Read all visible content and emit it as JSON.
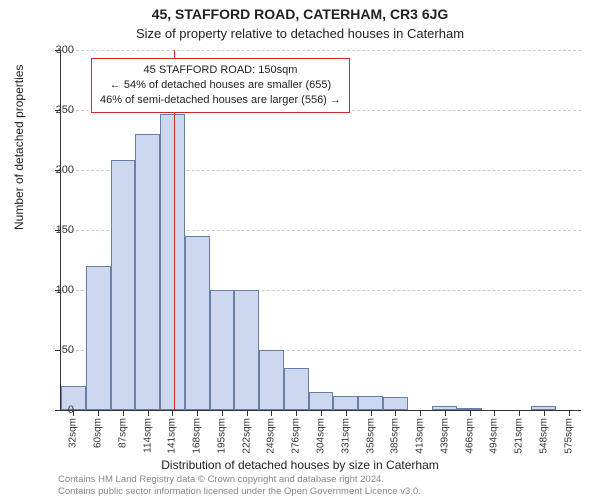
{
  "title": "45, STAFFORD ROAD, CATERHAM, CR3 6JG",
  "subtitle": "Size of property relative to detached houses in Caterham",
  "chart": {
    "type": "histogram",
    "background_color": "#ffffff",
    "grid_color": "#cccccc",
    "axis_color": "#333333",
    "bar_fill": "#cdd8ef",
    "bar_border": "#6a7fa8",
    "marker_color": "#d62728",
    "annotation_border": "#d62728",
    "y": {
      "label": "Number of detached properties",
      "min": 0,
      "max": 300,
      "tick_step": 50,
      "ticks": [
        0,
        50,
        100,
        150,
        200,
        250,
        300
      ],
      "label_fontsize": 12,
      "tick_fontsize": 11
    },
    "x": {
      "label": "Distribution of detached houses by size in Caterham",
      "unit": "sqm",
      "tick_vals": [
        32,
        60,
        87,
        114,
        141,
        168,
        195,
        222,
        249,
        276,
        304,
        331,
        358,
        385,
        413,
        439,
        466,
        494,
        521,
        548,
        575
      ],
      "min": 32,
      "max": 575,
      "label_fontsize": 12,
      "tick_fontsize": 10
    },
    "bars": [
      {
        "v": 20
      },
      {
        "v": 120
      },
      {
        "v": 208
      },
      {
        "v": 230
      },
      {
        "v": 247
      },
      {
        "v": 145
      },
      {
        "v": 100
      },
      {
        "v": 100
      },
      {
        "v": 50
      },
      {
        "v": 35
      },
      {
        "v": 15
      },
      {
        "v": 12
      },
      {
        "v": 12
      },
      {
        "v": 11
      },
      {
        "v": 0
      },
      {
        "v": 3
      },
      {
        "v": 2
      },
      {
        "v": 0
      },
      {
        "v": 0
      },
      {
        "v": 3
      },
      {
        "v": 0
      }
    ],
    "marker": {
      "value_sqm": 150,
      "annotation": {
        "line1": "45 STAFFORD ROAD: 150sqm",
        "line2": "← 54% of detached houses are smaller (655)",
        "line3": "46% of semi-detached houses are larger (556) →"
      }
    }
  },
  "credit": {
    "line1": "Contains HM Land Registry data © Crown copyright and database right 2024.",
    "line2": "Contains public sector information licensed under the Open Government Licence v3.0."
  }
}
